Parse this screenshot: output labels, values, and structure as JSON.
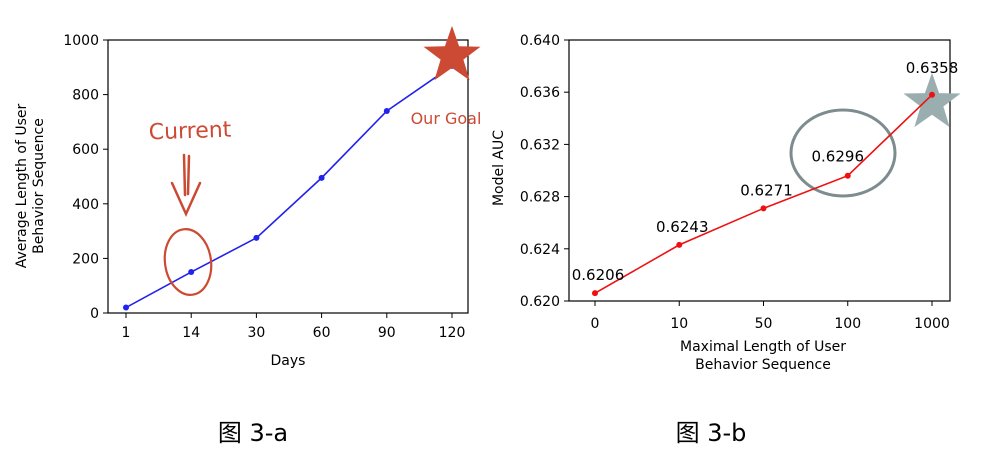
{
  "chart_data": [
    {
      "type": "line",
      "title": "",
      "xlabel": "Days",
      "ylabel": "Average Length of User Behavior Sequence",
      "ylabel_lines": [
        "Average Length of User",
        "Behavior Sequence"
      ],
      "categories": [
        "1",
        "14",
        "30",
        "60",
        "90",
        "120"
      ],
      "series": [
        {
          "values": [
            20,
            150,
            275,
            495,
            740,
            905
          ]
        }
      ],
      "ylim": [
        0,
        1000
      ],
      "yticks": [
        "0",
        "200",
        "400",
        "600",
        "800",
        "1000"
      ],
      "grid": false,
      "line_color": "#2222ee",
      "annotations": {
        "current_label": "Current",
        "goal_label": "Our Goal",
        "annotation_color": "#cc4a33"
      },
      "caption": "图 3-a"
    },
    {
      "type": "line",
      "title": "",
      "xlabel": "Maximal Length of User Behavior Sequence",
      "xlabel_lines": [
        "Maximal Length of User",
        "Behavior Sequence"
      ],
      "ylabel": "Model AUC",
      "categories": [
        "0",
        "10",
        "50",
        "100",
        "1000"
      ],
      "series": [
        {
          "values": [
            0.6206,
            0.6243,
            0.6271,
            0.6296,
            0.6358
          ]
        }
      ],
      "data_labels": [
        "0.6206",
        "0.6243",
        "0.6271",
        "0.6296",
        "0.6358"
      ],
      "ylim": [
        0.62,
        0.64
      ],
      "yticks": [
        "0.620",
        "0.624",
        "0.628",
        "0.632",
        "0.636",
        "0.640"
      ],
      "grid": false,
      "line_color": "#ee1111",
      "annotations": {
        "star_color": "#9aaeb0",
        "circle_color": "#7d8c8e"
      },
      "caption": "图 3-b"
    }
  ]
}
